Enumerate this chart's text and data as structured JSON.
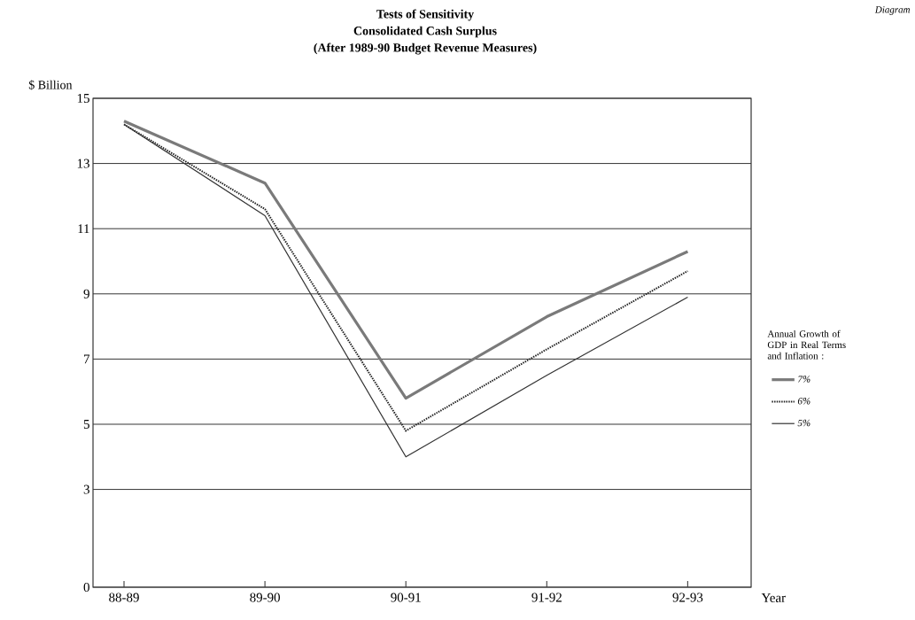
{
  "chart_data": {
    "type": "line",
    "title": "Tests of Sensitivity",
    "subtitle": "Consolidated Cash Surplus",
    "annotations": [
      "(After 1989-90 Budget Revenue Measures)",
      "Diagram"
    ],
    "xlabel": "Year",
    "ylabel": "$ Billion",
    "legend_title": "Annual Growth of GDP in Real Terms and Inflation :",
    "categories": [
      "88-89",
      "89-90",
      "90-91",
      "91-92",
      "92-93"
    ],
    "series": [
      {
        "name": "7%",
        "color": "#7a7a7a",
        "line_style": "solid",
        "values": [
          14.3,
          12.4,
          5.8,
          8.3,
          10.3
        ]
      },
      {
        "name": "6%",
        "color": "#222222",
        "line_style": "dotted",
        "values": [
          14.2,
          11.6,
          4.8,
          7.3,
          9.7
        ]
      },
      {
        "name": "5%",
        "color": "#333333",
        "line_style": "solid",
        "values": [
          14.2,
          11.4,
          4.0,
          6.5,
          8.9
        ]
      }
    ],
    "ylim": [
      0,
      15
    ],
    "yticks": [
      0,
      3,
      5,
      7,
      9,
      11,
      13,
      15
    ],
    "grid": "y",
    "legend": "right",
    "marker": "none"
  }
}
